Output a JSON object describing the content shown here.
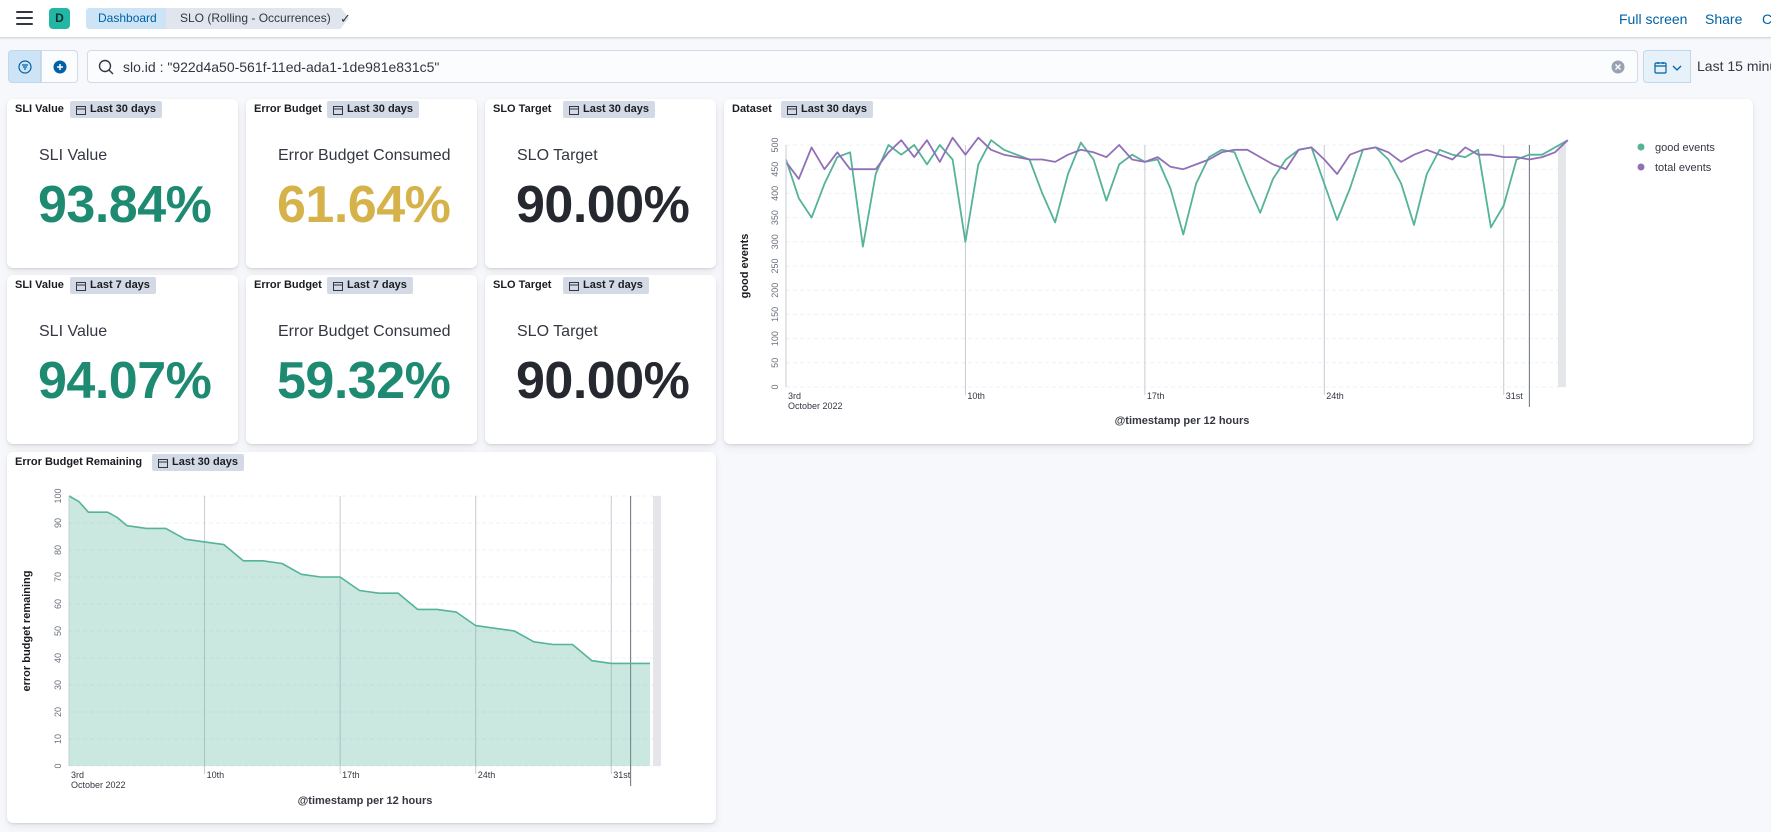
{
  "header": {
    "avatar_initial": "D",
    "breadcrumbs": [
      "Dashboard",
      "SLO (Rolling - Occurrences)"
    ],
    "links": {
      "full_screen": "Full screen",
      "share": "Share",
      "clone": "C"
    }
  },
  "query": {
    "value": "slo.id : \"922d4a50-561f-11ed-ada1-1de981e831c5\"",
    "time_range": "Last 15 minu"
  },
  "panels": {
    "sli30": {
      "title": "SLI Value",
      "badge": "Last 30 days",
      "label": "SLI Value",
      "value": "93.84%",
      "color": "#1e8a72"
    },
    "eb30": {
      "title": "Error Budget",
      "badge": "Last 30 days",
      "label": "Error Budget Consumed",
      "value": "61.64%",
      "color": "#d6b24a"
    },
    "target30": {
      "title": "SLO Target",
      "badge": "Last 30 days",
      "label": "SLO Target",
      "value": "90.00%",
      "color": "#25282f"
    },
    "sli7": {
      "title": "SLI Value",
      "badge": "Last 7 days",
      "label": "SLI Value",
      "value": "94.07%",
      "color": "#1e8a72"
    },
    "eb7": {
      "title": "Error Budget",
      "badge": "Last 7 days",
      "label": "Error Budget Consumed",
      "value": "59.32%",
      "color": "#1e8a72"
    },
    "target7": {
      "title": "SLO Target",
      "badge": "Last 7 days",
      "label": "SLO Target",
      "value": "90.00%",
      "color": "#25282f"
    },
    "dataset": {
      "title": "Dataset",
      "badge": "Last 30 days"
    },
    "remaining": {
      "title": "Error Budget Remaining",
      "badge": "Last 30 days"
    }
  },
  "chart_data": [
    {
      "type": "line",
      "ylabel": "good events",
      "xlabel": "@timestamp per 12 hours",
      "ylim": [
        0,
        500
      ],
      "yticks": [
        0,
        50,
        100,
        150,
        200,
        250,
        300,
        350,
        400,
        450,
        500
      ],
      "xticks": [
        "3rd",
        "10th",
        "17th",
        "24th",
        "31st"
      ],
      "xtick_sublabel": "October 2022",
      "x_days_range": [
        3,
        33
      ],
      "legend_position": "top-right",
      "grid": true,
      "series": [
        {
          "name": "good events",
          "color": "#54b399",
          "points": [
            [
              3,
              470
            ],
            [
              3.5,
              390
            ],
            [
              4,
              350
            ],
            [
              4.5,
              420
            ],
            [
              5,
              475
            ],
            [
              5.5,
              485
            ],
            [
              6,
              290
            ],
            [
              6.5,
              440
            ],
            [
              7,
              500
            ],
            [
              7.5,
              480
            ],
            [
              8,
              500
            ],
            [
              8.5,
              460
            ],
            [
              9,
              500
            ],
            [
              9.5,
              470
            ],
            [
              10,
              300
            ],
            [
              10.5,
              460
            ],
            [
              11,
              510
            ],
            [
              11.5,
              490
            ],
            [
              12,
              480
            ],
            [
              12.5,
              470
            ],
            [
              13,
              400
            ],
            [
              13.5,
              340
            ],
            [
              14,
              440
            ],
            [
              14.5,
              505
            ],
            [
              15,
              470
            ],
            [
              15.5,
              385
            ],
            [
              16,
              460
            ],
            [
              16.5,
              480
            ],
            [
              17,
              465
            ],
            [
              17.5,
              470
            ],
            [
              18,
              410
            ],
            [
              18.5,
              315
            ],
            [
              19,
              420
            ],
            [
              19.5,
              475
            ],
            [
              20,
              490
            ],
            [
              20.5,
              485
            ],
            [
              21,
              420
            ],
            [
              21.5,
              360
            ],
            [
              22,
              430
            ],
            [
              22.5,
              470
            ],
            [
              23,
              490
            ],
            [
              23.5,
              495
            ],
            [
              24,
              420
            ],
            [
              24.5,
              345
            ],
            [
              25,
              410
            ],
            [
              25.5,
              490
            ],
            [
              26,
              495
            ],
            [
              26.5,
              470
            ],
            [
              27,
              420
            ],
            [
              27.5,
              335
            ],
            [
              28,
              440
            ],
            [
              28.5,
              490
            ],
            [
              29,
              480
            ],
            [
              29.5,
              475
            ],
            [
              30,
              490
            ],
            [
              30.5,
              330
            ],
            [
              31,
              375
            ],
            [
              31.5,
              470
            ],
            [
              32,
              480
            ],
            [
              32.5,
              480
            ],
            [
              33,
              495
            ],
            [
              33.5,
              510
            ]
          ]
        },
        {
          "name": "total events",
          "color": "#9170b8",
          "points": [
            [
              3,
              465
            ],
            [
              3.5,
              430
            ],
            [
              4,
              495
            ],
            [
              4.5,
              450
            ],
            [
              5,
              485
            ],
            [
              5.5,
              450
            ],
            [
              6,
              450
            ],
            [
              6.5,
              450
            ],
            [
              7,
              485
            ],
            [
              7.5,
              510
            ],
            [
              8,
              475
            ],
            [
              8.5,
              510
            ],
            [
              9,
              465
            ],
            [
              9.5,
              515
            ],
            [
              10,
              480
            ],
            [
              10.5,
              515
            ],
            [
              11,
              490
            ],
            [
              11.5,
              480
            ],
            [
              12,
              475
            ],
            [
              12.5,
              470
            ],
            [
              13,
              470
            ],
            [
              13.5,
              465
            ],
            [
              14,
              480
            ],
            [
              14.5,
              490
            ],
            [
              15,
              485
            ],
            [
              15.5,
              475
            ],
            [
              16,
              500
            ],
            [
              16.5,
              470
            ],
            [
              17,
              465
            ],
            [
              17.5,
              475
            ],
            [
              18,
              455
            ],
            [
              18.5,
              450
            ],
            [
              19,
              460
            ],
            [
              19.5,
              470
            ],
            [
              20,
              485
            ],
            [
              20.5,
              490
            ],
            [
              21,
              490
            ],
            [
              21.5,
              475
            ],
            [
              22,
              460
            ],
            [
              22.5,
              450
            ],
            [
              23,
              490
            ],
            [
              23.5,
              495
            ],
            [
              24,
              470
            ],
            [
              24.5,
              440
            ],
            [
              25,
              480
            ],
            [
              25.5,
              490
            ],
            [
              26,
              495
            ],
            [
              26.5,
              485
            ],
            [
              27,
              465
            ],
            [
              27.5,
              480
            ],
            [
              28,
              490
            ],
            [
              28.5,
              480
            ],
            [
              29,
              470
            ],
            [
              29.5,
              495
            ],
            [
              30,
              480
            ],
            [
              30.5,
              480
            ],
            [
              31,
              475
            ],
            [
              31.5,
              475
            ],
            [
              32,
              470
            ],
            [
              32.5,
              475
            ],
            [
              33,
              485
            ],
            [
              33.5,
              510
            ]
          ]
        }
      ]
    },
    {
      "type": "area",
      "ylabel": "error budget remaining",
      "xlabel": "@timestamp per 12 hours",
      "ylim": [
        0,
        100
      ],
      "yticks": [
        0,
        10,
        20,
        30,
        40,
        50,
        60,
        70,
        80,
        90,
        100
      ],
      "xticks": [
        "3rd",
        "10th",
        "17th",
        "24th",
        "31st"
      ],
      "xtick_sublabel": "October 2022",
      "x_days_range": [
        3,
        33
      ],
      "grid": true,
      "series": [
        {
          "name": "",
          "color": "#54b399",
          "points": [
            [
              3,
              100
            ],
            [
              3.5,
              98
            ],
            [
              4,
              94
            ],
            [
              5,
              94
            ],
            [
              5.5,
              92
            ],
            [
              6,
              89
            ],
            [
              7,
              88
            ],
            [
              8,
              88
            ],
            [
              9,
              84
            ],
            [
              10,
              83
            ],
            [
              11,
              82
            ],
            [
              12,
              76
            ],
            [
              13,
              76
            ],
            [
              14,
              75
            ],
            [
              15,
              71
            ],
            [
              16,
              70
            ],
            [
              17,
              70
            ],
            [
              18,
              65
            ],
            [
              19,
              64
            ],
            [
              20,
              64
            ],
            [
              21,
              58
            ],
            [
              22,
              58
            ],
            [
              23,
              57
            ],
            [
              24,
              52
            ],
            [
              25,
              51
            ],
            [
              26,
              50
            ],
            [
              27,
              46
            ],
            [
              28,
              45
            ],
            [
              29,
              45
            ],
            [
              30,
              39
            ],
            [
              31,
              38
            ],
            [
              32,
              38
            ],
            [
              33,
              38
            ]
          ]
        }
      ]
    }
  ]
}
